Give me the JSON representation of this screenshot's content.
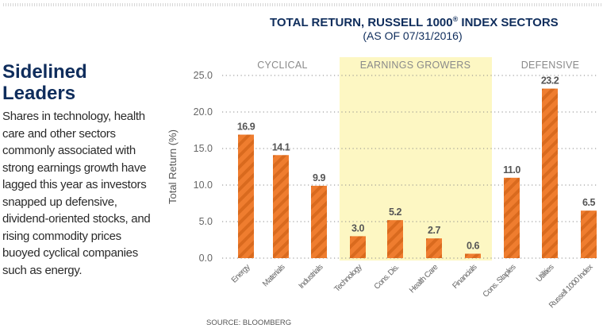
{
  "sidebar": {
    "title": "Sidelined Leaders",
    "body": "Shares in technology, health care and other sectors commonly associated with strong earnings growth have lagged this year as investors snapped up defensive, dividend-oriented stocks, and rising commodity prices buoyed cyclical companies such as energy."
  },
  "header": {
    "title": "TOTAL RETURN, RUSSELL 1000",
    "title_mark": "®",
    "title_tail": " INDEX SECTORS",
    "subtitle": "(AS OF 07/31/2016)"
  },
  "source": "SOURCE: BLOOMBERG",
  "colors": {
    "bar": "#ef7d2f",
    "bar_stripe": "#d96a1e",
    "highlight_band": "#fdf7c3",
    "title": "#0f2d5c",
    "group_label": "#8a8a8a"
  },
  "chart_data": {
    "type": "bar",
    "title": "TOTAL RETURN, RUSSELL 1000® INDEX SECTORS",
    "subtitle": "(AS OF 07/31/2016)",
    "xlabel": "",
    "ylabel": "Total Return (%)",
    "ylim": [
      0,
      25
    ],
    "yticks": [
      "0.0",
      "5.0",
      "10.0",
      "15.0",
      "20.0",
      "25.0"
    ],
    "ytick_values": [
      0,
      5,
      10,
      15,
      20,
      25
    ],
    "grid": true,
    "categories": [
      "Energy",
      "Materials",
      "Industrials",
      "Technology",
      "Cons. Dis.",
      "Health Care",
      "Financials",
      "Cons. Staples",
      "Utilities",
      "Russell 1000 Index"
    ],
    "values": [
      16.9,
      14.1,
      9.9,
      3.0,
      5.2,
      2.7,
      0.6,
      11.0,
      23.2,
      6.5
    ],
    "value_labels": [
      "16.9",
      "14.1",
      "9.9",
      "3.0",
      "5.2",
      "2.7",
      "0.6",
      "11.0",
      "23.2",
      "6.5"
    ],
    "groups": [
      {
        "name": "CYCLICAL",
        "members": [
          "Energy",
          "Materials",
          "Industrials"
        ],
        "highlighted": false
      },
      {
        "name": "EARNINGS GROWERS",
        "members": [
          "Technology",
          "Cons. Dis.",
          "Health Care",
          "Financials"
        ],
        "highlighted": true
      },
      {
        "name": "DEFENSIVE",
        "members": [
          "Cons. Staples",
          "Utilities",
          "Russell 1000 Index"
        ],
        "highlighted": false
      }
    ]
  }
}
